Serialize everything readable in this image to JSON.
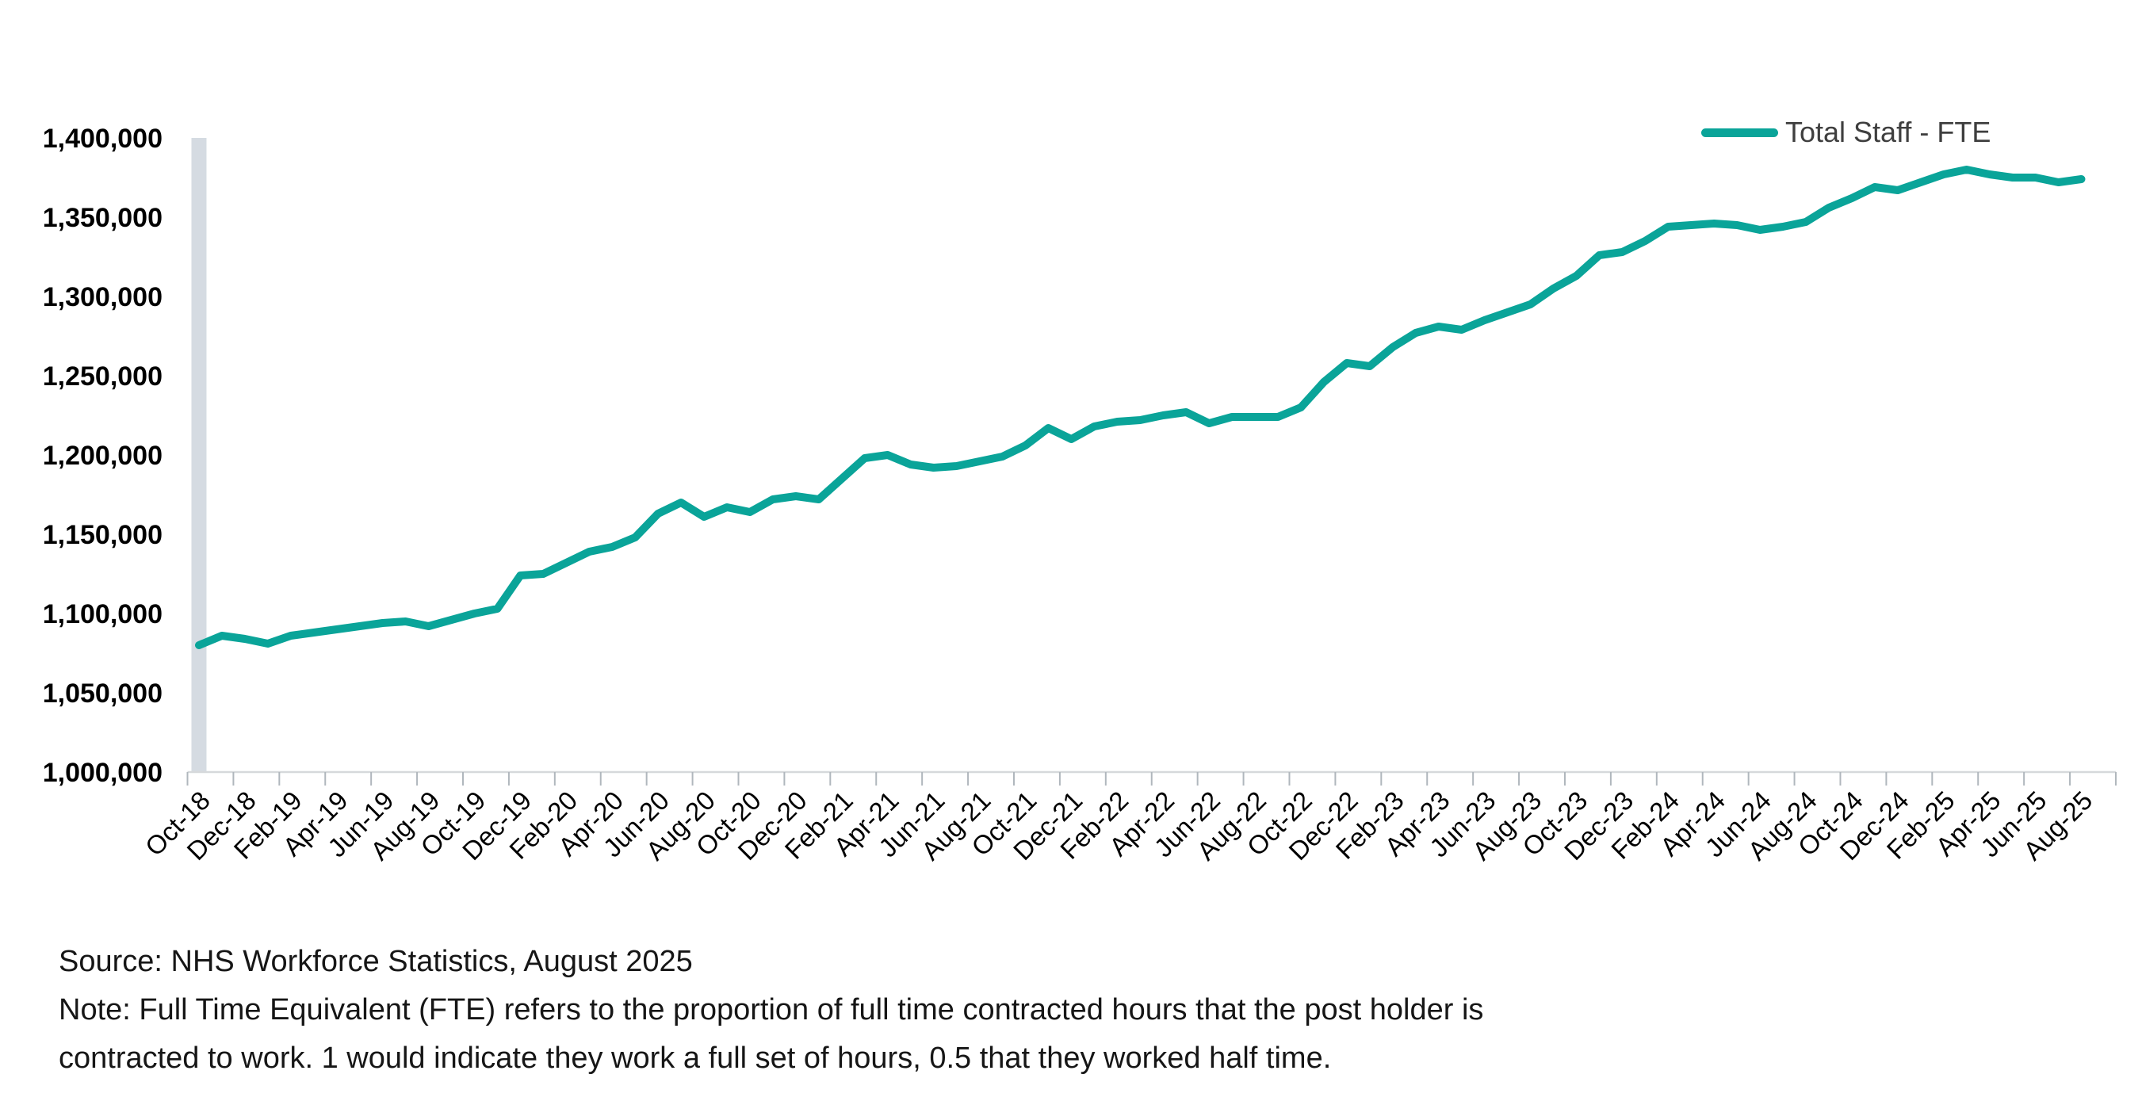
{
  "legend": {
    "label": "Total Staff - FTE"
  },
  "footer": {
    "source": "Source: NHS Workforce Statistics, August 2025",
    "note_line1": "Note: Full Time Equivalent (FTE) refers to the proportion of full time contracted hours that the post holder is",
    "note_line2": "contracted to work. 1 would indicate they work a full set of hours, 0.5 that they worked half time."
  },
  "colors": {
    "line": "#0AA499",
    "band": "#D5DBE2",
    "axis_line": "#D6D9DB",
    "tick": "#B0B7BD",
    "y_label": "#000000",
    "x_label": "#000000",
    "legend_text": "#3F3F3F",
    "footer_text": "#161616"
  },
  "chart_data": {
    "type": "line",
    "title": "",
    "xlabel": "",
    "ylabel": "",
    "grid": false,
    "legend_position": "top-right",
    "ylim": [
      1000000,
      1400000
    ],
    "y_tick_step": 50000,
    "y_tick_labels": [
      "1,400,000",
      "1,350,000",
      "1,300,000",
      "1,250,000",
      "1,200,000",
      "1,150,000",
      "1,100,000",
      "1,050,000",
      "1,000,000"
    ],
    "y_tick_values": [
      1400000,
      1350000,
      1300000,
      1250000,
      1200000,
      1150000,
      1100000,
      1050000,
      1000000
    ],
    "x_tick_labels": [
      "Oct-18",
      "Dec-18",
      "Feb-19",
      "Apr-19",
      "Jun-19",
      "Aug-19",
      "Oct-19",
      "Dec-19",
      "Feb-20",
      "Apr-20",
      "Jun-20",
      "Aug-20",
      "Oct-20",
      "Dec-20",
      "Feb-21",
      "Apr-21",
      "Jun-21",
      "Aug-21",
      "Oct-21",
      "Dec-21",
      "Feb-22",
      "Apr-22",
      "Jun-22",
      "Aug-22",
      "Oct-22",
      "Dec-22",
      "Feb-23",
      "Apr-23",
      "Jun-23",
      "Aug-23",
      "Oct-23",
      "Dec-23",
      "Feb-24",
      "Apr-24",
      "Jun-24",
      "Aug-24",
      "Oct-24",
      "Dec-24",
      "Feb-25",
      "Apr-25",
      "Jun-25",
      "Aug-25"
    ],
    "months_per_x_label": 2,
    "series": [
      {
        "name": "Total Staff - FTE",
        "color": "#0AA499",
        "start": "Oct-18",
        "end": "Aug-25",
        "values": [
          1080000,
          1086000,
          1084000,
          1081000,
          1086000,
          1088000,
          1090000,
          1092000,
          1094000,
          1095000,
          1092000,
          1096000,
          1100000,
          1103000,
          1124000,
          1125000,
          1132000,
          1139000,
          1142000,
          1148000,
          1163000,
          1170000,
          1161000,
          1167000,
          1164000,
          1172000,
          1174000,
          1172000,
          1185000,
          1198000,
          1200000,
          1194000,
          1192000,
          1193000,
          1196000,
          1199000,
          1206000,
          1217000,
          1210000,
          1218000,
          1221000,
          1222000,
          1225000,
          1227000,
          1220000,
          1224000,
          1224000,
          1224000,
          1230000,
          1246000,
          1258000,
          1256000,
          1268000,
          1277000,
          1281000,
          1279000,
          1285000,
          1290000,
          1295000,
          1305000,
          1313000,
          1326000,
          1328000,
          1335000,
          1344000,
          1345000,
          1346000,
          1345000,
          1342000,
          1344000,
          1347000,
          1356000,
          1362000,
          1369000,
          1367000,
          1372000,
          1377000,
          1380000,
          1377000,
          1375000,
          1375000,
          1372000,
          1374000
        ]
      }
    ]
  }
}
